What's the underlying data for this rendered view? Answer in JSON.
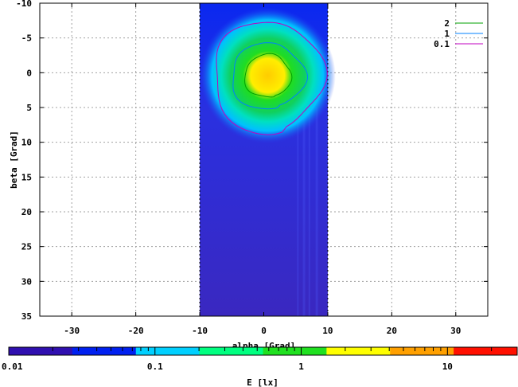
{
  "chart_data": {
    "type": "heatmap",
    "title": "",
    "xlabel": "alpha [Grad]",
    "ylabel": "beta [Grad]",
    "xlim": [
      -35,
      35
    ],
    "ylim": [
      -10,
      35
    ],
    "y_inverted": true,
    "x_ticks": [
      -30,
      -20,
      -10,
      0,
      10,
      20,
      30
    ],
    "y_ticks": [
      -10,
      -5,
      0,
      5,
      10,
      15,
      20,
      25,
      30,
      35
    ],
    "grid": true,
    "data_region": {
      "alpha": [
        -10,
        10
      ],
      "beta": [
        -10,
        35
      ]
    },
    "peak": {
      "alpha": 0,
      "beta": 0,
      "value_lx": 3.5
    },
    "contours": [
      {
        "name": "2",
        "level": 2,
        "color": "#00a000",
        "approx_radius": {
          "alpha": 3.6,
          "beta": 3.0
        }
      },
      {
        "name": "1",
        "level": 1,
        "color": "#0080ff",
        "approx_radius": {
          "alpha": 5.7,
          "beta": 4.6
        }
      },
      {
        "name": "0.1",
        "level": 0.1,
        "color": "#c000c0",
        "approx_radius": {
          "alpha": 8.5,
          "beta": 7.8
        }
      }
    ],
    "legend": {
      "placement": "top-right",
      "entries": [
        {
          "label": "2",
          "color": "#00a000"
        },
        {
          "label": "1",
          "color": "#0080ff"
        },
        {
          "label": "0.1",
          "color": "#c000c0"
        }
      ]
    },
    "colorbar": {
      "label": "E [lx]",
      "scale": "log",
      "range": [
        0.01,
        30
      ],
      "tick_labels": [
        "0.01",
        "0.1",
        "1",
        "10"
      ],
      "tick_values": [
        0.01,
        0.1,
        1,
        10
      ],
      "colors": [
        "#3010b0",
        "#0020f0",
        "#00d0ff",
        "#00ff80",
        "#20e020",
        "#ffff00",
        "#ffa000",
        "#ff1000"
      ]
    }
  }
}
